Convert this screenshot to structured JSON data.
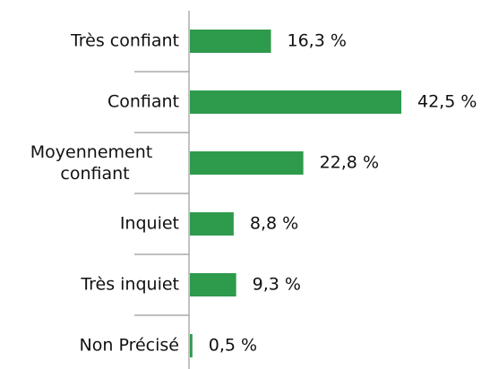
{
  "chart_data": {
    "type": "bar",
    "orientation": "horizontal",
    "categories": [
      "Très confiant",
      "Confiant",
      "Moyennement confiant",
      "Inquiet",
      "Très inquiet",
      "Non Précisé"
    ],
    "values": [
      16.3,
      42.5,
      22.8,
      8.8,
      9.3,
      0.5
    ],
    "value_labels": [
      "16,3 %",
      "42,5 %",
      "22,8 %",
      "8,8 %",
      "9,3 %",
      "0,5 %"
    ],
    "color": "#2e9a4c"
  }
}
